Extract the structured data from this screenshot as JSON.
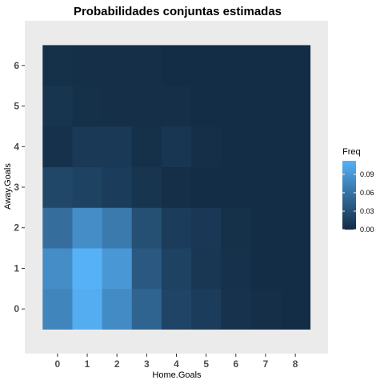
{
  "chart_data": {
    "type": "heatmap",
    "title": "Probabilidades conjuntas estimadas",
    "xlabel": "Home.Goals",
    "ylabel": "Away.Goals",
    "x": [
      0,
      1,
      2,
      3,
      4,
      5,
      6,
      7,
      8
    ],
    "y": [
      0,
      1,
      2,
      3,
      4,
      5,
      6
    ],
    "values": [
      [
        0.076,
        0.108,
        0.08,
        0.048,
        0.021,
        0.014,
        0.006,
        0.003,
        0.002
      ],
      [
        0.082,
        0.112,
        0.09,
        0.038,
        0.019,
        0.01,
        0.005,
        0.002,
        0.002
      ],
      [
        0.056,
        0.082,
        0.066,
        0.03,
        0.014,
        0.011,
        0.004,
        0.002,
        0.002
      ],
      [
        0.023,
        0.019,
        0.014,
        0.008,
        0.003,
        0.002,
        0.002,
        0.002,
        0.002
      ],
      [
        0.005,
        0.012,
        0.012,
        0.004,
        0.009,
        0.003,
        0.002,
        0.002,
        0.002
      ],
      [
        0.008,
        0.004,
        0.003,
        0.003,
        0.003,
        0.002,
        0.002,
        0.002,
        0.002
      ],
      [
        0.004,
        0.003,
        0.003,
        0.003,
        0.002,
        0.002,
        0.002,
        0.002,
        0.002
      ]
    ],
    "legend": {
      "title": "Freq",
      "ticks": [
        0.0,
        0.03,
        0.06,
        0.09
      ],
      "tick_labels": [
        "0.00",
        "0.03",
        "0.06",
        "0.09"
      ],
      "range": [
        0.0,
        0.112
      ],
      "low_color": "#132B43",
      "high_color": "#56B1F7",
      "placement": "right"
    },
    "panel_background": "#EBEBEB",
    "grid": false
  }
}
